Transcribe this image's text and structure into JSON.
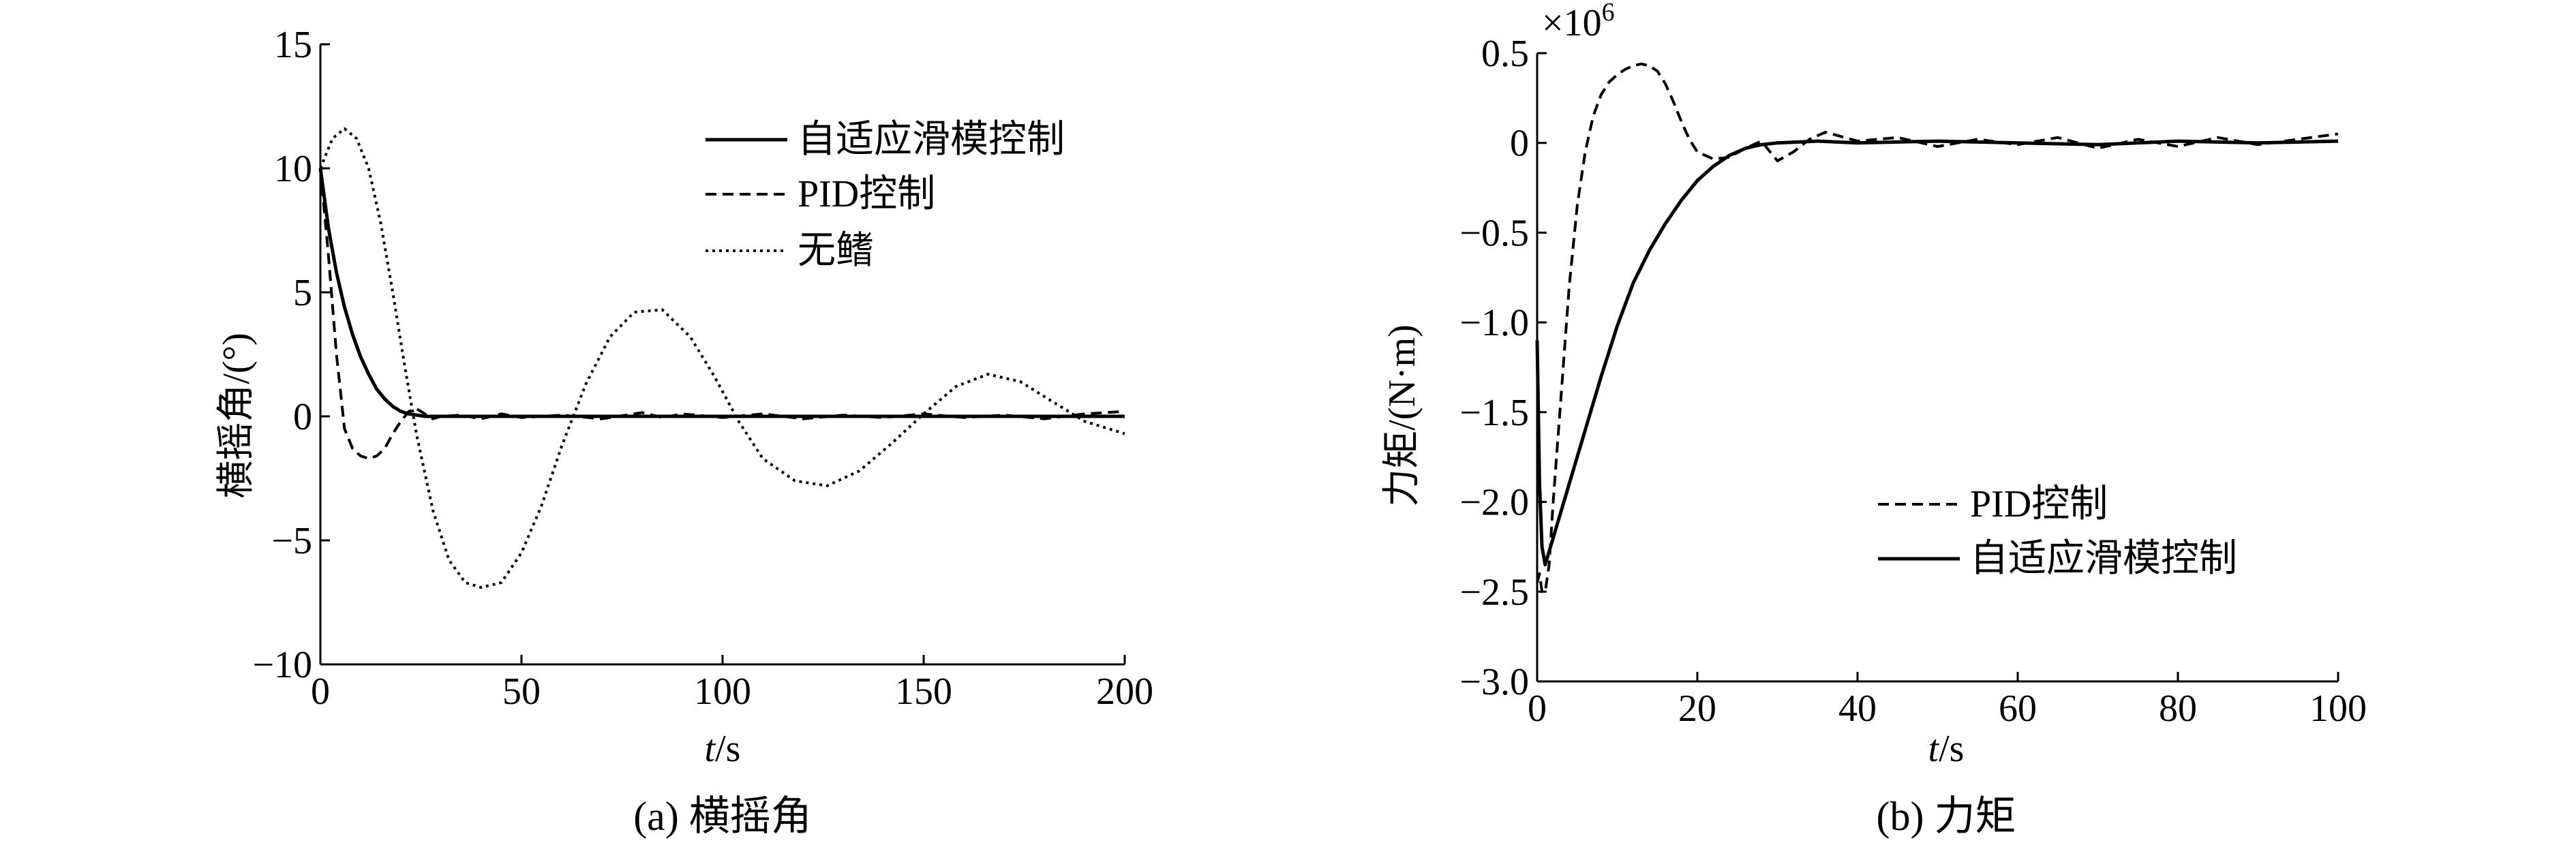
{
  "chart_data": [
    {
      "type": "line",
      "caption": "(a) 横摇角",
      "xlabel_italic": "t",
      "xlabel_rest": "/s",
      "ylabel": "横摇角/(°)",
      "xlim": [
        0,
        200
      ],
      "ylim": [
        -10,
        15
      ],
      "xticks": [
        0,
        50,
        100,
        150,
        200
      ],
      "yticks": [
        -10,
        -5,
        0,
        5,
        10,
        15
      ],
      "xtick_labels": [
        "0",
        "50",
        "100",
        "150",
        "200"
      ],
      "ytick_labels": [
        "−10",
        "−5",
        "0",
        "5",
        "10",
        "15"
      ],
      "grid": false,
      "legend_position": "top-right",
      "series": [
        {
          "name": "自适应滑模控制",
          "style": "solid",
          "x": [
            0,
            2,
            4,
            6,
            8,
            10,
            12,
            14,
            16,
            18,
            20,
            22,
            24,
            26,
            30,
            40,
            60,
            80,
            100,
            120,
            140,
            160,
            180,
            200
          ],
          "y": [
            10,
            7.6,
            5.8,
            4.4,
            3.3,
            2.4,
            1.7,
            1.1,
            0.7,
            0.4,
            0.2,
            0.1,
            0.05,
            0,
            0,
            0,
            0,
            0,
            0,
            0,
            0,
            0,
            0,
            0
          ]
        },
        {
          "name": "PID控制",
          "style": "dashed",
          "x": [
            0,
            2,
            4,
            6,
            8,
            10,
            12,
            14,
            16,
            18,
            20,
            22,
            24,
            26,
            28,
            30,
            35,
            40,
            45,
            50,
            60,
            70,
            80,
            85,
            90,
            100,
            110,
            120,
            130,
            140,
            150,
            160,
            170,
            180,
            190,
            200
          ],
          "y": [
            10,
            6.5,
            2.5,
            -0.5,
            -1.3,
            -1.6,
            -1.7,
            -1.6,
            -1.3,
            -0.7,
            -0.2,
            0.2,
            0.3,
            0.1,
            -0.1,
            0,
            0.05,
            -0.1,
            0.1,
            -0.05,
            0.05,
            -0.1,
            0.15,
            -0.05,
            0.1,
            -0.05,
            0.1,
            -0.1,
            0.05,
            -0.05,
            0.1,
            -0.05,
            0.05,
            -0.1,
            0.1,
            0.2
          ]
        },
        {
          "name": "无鳍",
          "style": "dotted",
          "x": [
            0,
            3,
            6,
            9,
            12,
            15,
            18,
            21,
            24,
            28,
            32,
            36,
            40,
            45,
            50,
            55,
            60,
            66,
            72,
            78,
            85,
            92,
            98,
            104,
            110,
            118,
            126,
            134,
            142,
            150,
            158,
            166,
            174,
            182,
            190,
            196,
            200
          ],
          "y": [
            10,
            11.2,
            11.6,
            11.2,
            10,
            7.8,
            5,
            2,
            -0.8,
            -3.8,
            -5.8,
            -6.7,
            -6.9,
            -6.7,
            -5.5,
            -3.6,
            -1.2,
            1.3,
            3.2,
            4.2,
            4.3,
            3.2,
            1.6,
            -0.2,
            -1.7,
            -2.6,
            -2.8,
            -2.2,
            -1.1,
            0.1,
            1.2,
            1.7,
            1.4,
            0.6,
            -0.2,
            -0.5,
            -0.7
          ]
        }
      ]
    },
    {
      "type": "line",
      "caption": "(b) 力矩",
      "xlabel_italic": "t",
      "xlabel_rest": "/s",
      "ylabel": "力矩/(N·m)",
      "y_multiplier_base": "×10",
      "y_multiplier_exp": "6",
      "xlim": [
        0,
        100
      ],
      "ylim": [
        -3.0,
        0.5
      ],
      "xticks": [
        0,
        20,
        40,
        60,
        80,
        100
      ],
      "yticks": [
        0.5,
        0,
        -0.5,
        -1.0,
        -1.5,
        -2.0,
        -2.5,
        -3.0
      ],
      "xtick_labels": [
        "0",
        "20",
        "40",
        "60",
        "80",
        "100"
      ],
      "ytick_labels": [
        "0.5",
        "0",
        "−0.5",
        "−1.0",
        "−1.5",
        "−2.0",
        "−2.5",
        "−3.0"
      ],
      "grid": false,
      "legend_position": "bottom-right",
      "series": [
        {
          "name": "PID控制",
          "style": "dashed",
          "x": [
            0,
            0.3,
            0.6,
            1,
            1.5,
            2,
            3,
            4,
            5,
            6,
            7,
            8,
            9,
            10,
            11,
            12,
            13,
            14,
            15,
            16,
            17,
            18,
            19,
            20,
            22,
            24,
            26,
            28,
            30,
            32,
            34,
            36,
            40,
            45,
            50,
            55,
            60,
            65,
            70,
            75,
            80,
            85,
            90,
            95,
            100
          ],
          "y": [
            -2.45,
            -2.4,
            -2.5,
            -2.5,
            -2.35,
            -2.0,
            -1.4,
            -0.8,
            -0.35,
            -0.05,
            0.15,
            0.27,
            0.34,
            0.38,
            0.41,
            0.43,
            0.44,
            0.43,
            0.4,
            0.33,
            0.23,
            0.12,
            0.02,
            -0.05,
            -0.09,
            -0.08,
            -0.03,
            0.01,
            -0.1,
            -0.05,
            0.02,
            0.06,
            0.01,
            0.03,
            -0.02,
            0.02,
            -0.01,
            0.03,
            -0.03,
            0.02,
            -0.02,
            0.03,
            -0.01,
            0.02,
            0.05
          ]
        },
        {
          "name": "自适应滑模控制",
          "style": "solid",
          "x": [
            0,
            0.3,
            0.6,
            1,
            2,
            3,
            4,
            6,
            8,
            10,
            12,
            14,
            16,
            18,
            20,
            22,
            24,
            26,
            28,
            30,
            35,
            40,
            50,
            60,
            70,
            80,
            90,
            100
          ],
          "y": [
            -1.1,
            -1.9,
            -2.25,
            -2.35,
            -2.2,
            -2.05,
            -1.9,
            -1.6,
            -1.3,
            -1.02,
            -0.78,
            -0.6,
            -0.45,
            -0.32,
            -0.21,
            -0.13,
            -0.07,
            -0.03,
            -0.01,
            0,
            0.01,
            0,
            0.01,
            0,
            -0.01,
            0.01,
            0,
            0.01
          ]
        }
      ]
    }
  ]
}
